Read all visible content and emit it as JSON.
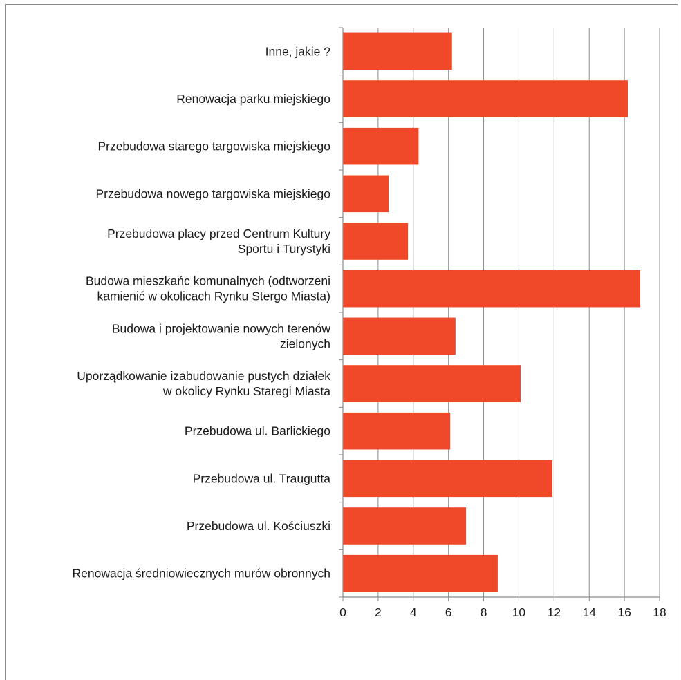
{
  "chart_data": {
    "type": "bar",
    "orientation": "horizontal",
    "title": "",
    "xlabel": "",
    "ylabel": "",
    "categories": [
      [
        "Inne, jakie ?"
      ],
      [
        "Renowacja parku miejskiego"
      ],
      [
        "Przebudowa starego targowiska miejskiego"
      ],
      [
        "Przebudowa nowego targowiska miejskiego"
      ],
      [
        "Przebudowa placy przed Centrum Kultury",
        "Sportu i Turystyki"
      ],
      [
        "Budowa mieszkańc komunalnych (odtworzeni",
        "kamienić w okolicach Rynku Stergo Miasta)"
      ],
      [
        "Budowa i projektowanie nowych terenów",
        "zielonych"
      ],
      [
        "Uporządkowanie izabudowanie pustych działek",
        "w okolicy Rynku Staregi Miasta"
      ],
      [
        "Przebudowa ul. Barlickiego"
      ],
      [
        "Przebudowa ul. Traugutta"
      ],
      [
        "Przebudowa ul. Kościuszki"
      ],
      [
        "Renowacja średniowiecznych murów obronnych"
      ]
    ],
    "values": [
      6.2,
      16.2,
      4.3,
      2.6,
      3.7,
      16.9,
      6.4,
      10.1,
      6.1,
      11.9,
      7.0,
      8.8
    ],
    "xlim": [
      0,
      18
    ],
    "xticks": [
      "0",
      "2",
      "4",
      "6",
      "8",
      "10",
      "12",
      "14",
      "16",
      "18"
    ],
    "grid": true,
    "legend": "none",
    "bar_color": "#F0492A",
    "grid_color": "#8c8c8c"
  }
}
